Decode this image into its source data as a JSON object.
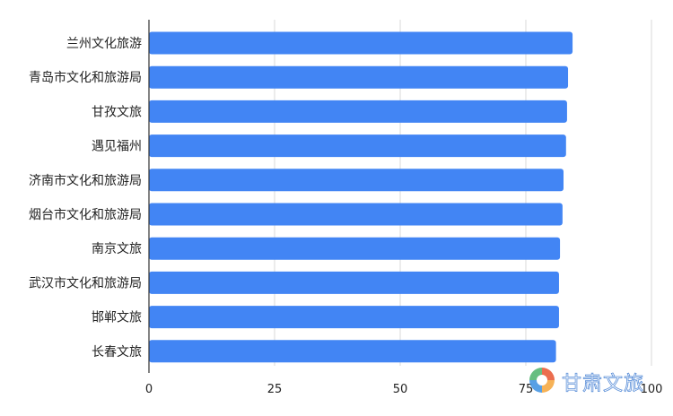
{
  "chart_data": {
    "type": "bar",
    "orientation": "horizontal",
    "categories": [
      "兰州文化旅游",
      "青岛市文化和旅游局",
      "甘孜文旅",
      "遇见福州",
      "济南市文化和旅游局",
      "烟台市文化和旅游局",
      "南京文旅",
      "武汉市文化和旅游局",
      "邯郸文旅",
      "长春文旅"
    ],
    "values": [
      84.3,
      83.4,
      83.2,
      83.0,
      82.5,
      82.3,
      81.8,
      81.6,
      81.6,
      81.0
    ],
    "xlim": [
      0,
      100
    ],
    "xticks": [
      0,
      25,
      50,
      75,
      100
    ],
    "xtick_labels": [
      "0",
      "25",
      "50",
      "75",
      "100"
    ],
    "grid": true,
    "bar_color": "#4285f4",
    "title": "",
    "xlabel": "",
    "ylabel": ""
  },
  "watermark": {
    "text": "甘肃文旅",
    "logo_colors": [
      "#e8542f",
      "#f4a43a",
      "#3b8fe0",
      "#4cb36b"
    ]
  }
}
